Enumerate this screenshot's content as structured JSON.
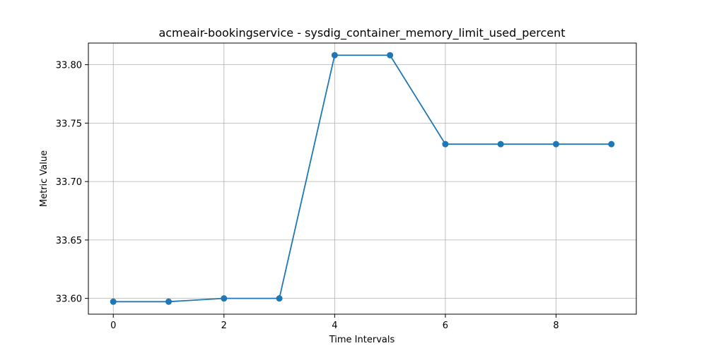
{
  "chart_data": {
    "type": "line",
    "title": "acmeair-bookingservice - sysdig_container_memory_limit_used_percent",
    "xlabel": "Time Intervals",
    "ylabel": "Metric Value",
    "x": [
      0,
      1,
      2,
      3,
      4,
      5,
      6,
      7,
      8,
      9
    ],
    "series": [
      {
        "values": [
          33.5972,
          33.5972,
          33.6,
          33.6,
          33.8081,
          33.8081,
          33.732,
          33.732,
          33.732,
          33.732
        ]
      }
    ],
    "xlim": [
      -0.45,
      9.45
    ],
    "ylim": [
      33.5865,
      33.8185
    ],
    "xticks": [
      0,
      2,
      4,
      6,
      8
    ],
    "yticks": [
      33.6,
      33.65,
      33.7,
      33.75,
      33.8
    ],
    "xtick_labels": [
      "0",
      "2",
      "4",
      "6",
      "8"
    ],
    "ytick_labels": [
      "33.60",
      "33.65",
      "33.70",
      "33.75",
      "33.80"
    ],
    "grid": true,
    "markers": true,
    "colors": {
      "line": "#1f77b4",
      "grid": "#b0b0b0",
      "axes": "#000000"
    }
  }
}
